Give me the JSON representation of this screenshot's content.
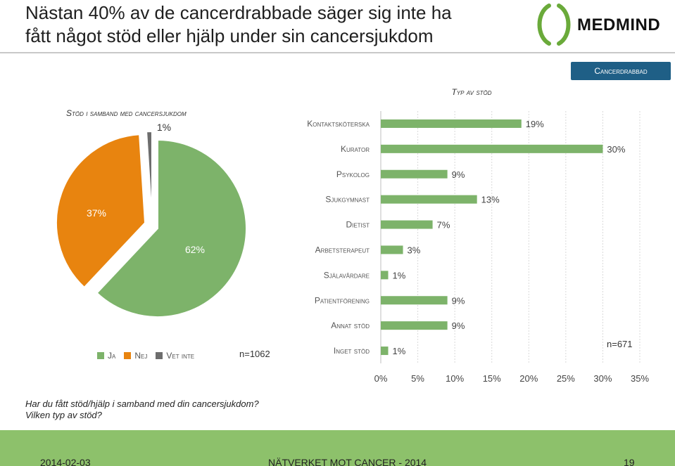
{
  "slide": {
    "title_line1": "Nästan 40% av de cancerdrabbade säger sig inte ha",
    "title_line2": "fått något stöd eller hjälp under sin cancersjukdom",
    "logo_text": "MEDMIND",
    "badge": "Cancerdrabbad",
    "question_line1": "Har du fått stöd/hjälp i samband med din cancersjukdom?",
    "question_line2": "Vilken typ av stöd?",
    "footer": {
      "date": "2014-02-03",
      "center": "NÄTVERKET MOT CANCER - 2014",
      "page": "19"
    }
  },
  "colors": {
    "green": "#7db36a",
    "orange": "#e8840f",
    "gray": "#6d6d6d",
    "footer": "#8dc16b",
    "badge": "#1f5f86"
  },
  "chart_data": [
    {
      "type": "pie",
      "title": "Stöd i samband med cancersjukdom",
      "slices": [
        {
          "label": "Ja",
          "value": 62,
          "display": "62%"
        },
        {
          "label": "Nej",
          "value": 37,
          "display": "37%"
        },
        {
          "label": "Vet inte",
          "value": 1,
          "display": "1%"
        }
      ],
      "n": "n=1062",
      "legend_position": "bottom"
    },
    {
      "type": "bar",
      "orientation": "horizontal",
      "title": "Typ av stöd",
      "categories": [
        "Kontaktsköterska",
        "Kurator",
        "Psykolog",
        "Sjukgymnast",
        "Dietist",
        "Arbetsterapeut",
        "Själavårdare",
        "Patientförening",
        "Annat stöd",
        "Inget stöd"
      ],
      "values": [
        19,
        30,
        9,
        13,
        7,
        3,
        1,
        9,
        9,
        1
      ],
      "value_labels": [
        "19%",
        "30%",
        "9%",
        "13%",
        "7%",
        "3%",
        "1%",
        "9%",
        "9%",
        "1%"
      ],
      "xlim": [
        0,
        35
      ],
      "x_ticks": [
        "0%",
        "5%",
        "10%",
        "15%",
        "20%",
        "25%",
        "30%",
        "35%"
      ],
      "n": "n=671",
      "grid": true
    }
  ]
}
